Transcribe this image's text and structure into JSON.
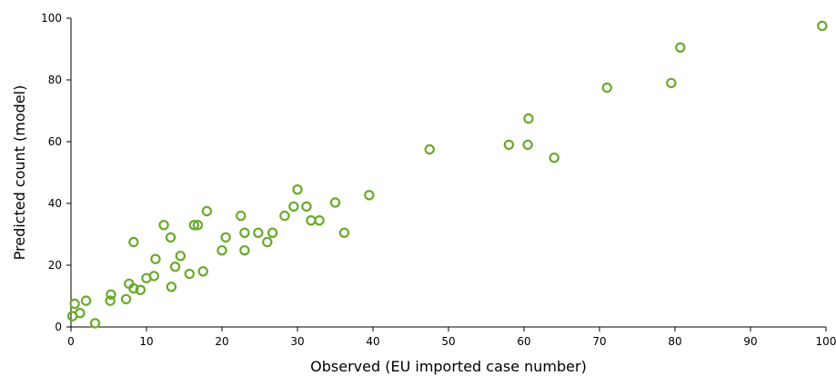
{
  "chart_data": {
    "type": "scatter",
    "title": "",
    "xlabel": "Observed (EU imported case number)",
    "ylabel": "Predicted count (model)",
    "xlim": [
      0,
      100
    ],
    "ylim": [
      0,
      100
    ],
    "x_ticks": [
      0,
      10,
      20,
      30,
      40,
      50,
      60,
      70,
      80,
      90,
      100
    ],
    "y_ticks": [
      0,
      20,
      40,
      60,
      80,
      100
    ],
    "x_tick_labels": [
      "0",
      "10",
      "20",
      "30",
      "40",
      "50",
      "60",
      "70",
      "80",
      "90",
      "100"
    ],
    "y_tick_labels": [
      "0",
      "20",
      "40",
      "60",
      "80",
      "100"
    ],
    "grid": false,
    "marker_color": "#6aaa2b",
    "series": [
      {
        "points": [
          [
            0.2,
            3.5
          ],
          [
            0.5,
            7.5
          ],
          [
            1.2,
            4.5
          ],
          [
            2.0,
            8.5
          ],
          [
            3.2,
            1.2
          ],
          [
            5.2,
            8.5
          ],
          [
            5.3,
            10.5
          ],
          [
            7.3,
            9.0
          ],
          [
            7.7,
            14.0
          ],
          [
            8.3,
            12.5
          ],
          [
            8.3,
            27.5
          ],
          [
            9.2,
            12.0
          ],
          [
            10.0,
            15.8
          ],
          [
            11.0,
            16.5
          ],
          [
            11.2,
            22.0
          ],
          [
            12.3,
            33.0
          ],
          [
            13.2,
            29.0
          ],
          [
            13.3,
            13.0
          ],
          [
            13.8,
            19.5
          ],
          [
            14.5,
            23.0
          ],
          [
            15.7,
            17.2
          ],
          [
            16.3,
            33.0
          ],
          [
            16.8,
            33.0
          ],
          [
            17.5,
            18.0
          ],
          [
            18.0,
            37.5
          ],
          [
            20.0,
            24.8
          ],
          [
            20.5,
            29.0
          ],
          [
            22.5,
            36.0
          ],
          [
            23.0,
            24.8
          ],
          [
            23.0,
            30.5
          ],
          [
            24.8,
            30.5
          ],
          [
            26.0,
            27.5
          ],
          [
            26.7,
            30.5
          ],
          [
            28.3,
            36.0
          ],
          [
            29.5,
            39.0
          ],
          [
            30.0,
            44.5
          ],
          [
            31.2,
            39.0
          ],
          [
            31.8,
            34.5
          ],
          [
            32.9,
            34.5
          ],
          [
            35.0,
            40.3
          ],
          [
            36.2,
            30.5
          ],
          [
            39.5,
            42.7
          ],
          [
            47.5,
            57.5
          ],
          [
            58.0,
            59.0
          ],
          [
            60.5,
            59.0
          ],
          [
            60.6,
            67.5
          ],
          [
            64.0,
            54.8
          ],
          [
            71.0,
            77.5
          ],
          [
            79.5,
            79.0
          ],
          [
            80.7,
            90.5
          ],
          [
            99.5,
            97.5
          ]
        ]
      }
    ]
  }
}
